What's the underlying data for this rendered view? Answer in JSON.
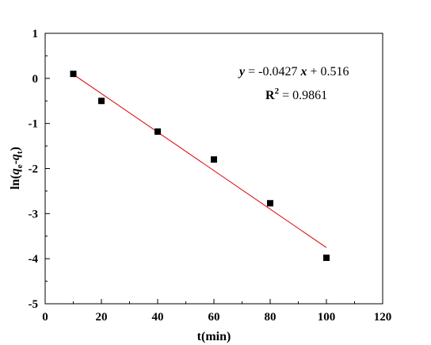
{
  "chart_data": {
    "type": "scatter",
    "xlabel": "t(min)",
    "ylabel": {
      "prefix": "ln(",
      "q1": "q",
      "sub1": "e",
      "dash": "-",
      "q2": "q",
      "sub2": "t",
      "suffix": ")"
    },
    "xlim": [
      0,
      120
    ],
    "ylim": [
      -5,
      1
    ],
    "xticks": [
      0,
      20,
      40,
      60,
      80,
      100,
      120
    ],
    "yticks": [
      1,
      0,
      -1,
      -2,
      -3,
      -4,
      -5
    ],
    "grid": false,
    "series": [
      {
        "x": [
          10,
          20,
          40,
          60,
          80,
          100
        ],
        "y": [
          0.1,
          -0.5,
          -1.18,
          -1.8,
          -2.77,
          -3.98
        ],
        "marker": "square",
        "color": "#000000"
      }
    ],
    "fit_line": {
      "slope": -0.0427,
      "intercept": 0.516,
      "x_range": [
        10,
        100
      ],
      "color": "#dd0000"
    },
    "annotations": {
      "equation": {
        "y": "y",
        "eq": " = -0.0427 ",
        "x": "x",
        "rest": " + 0.516"
      },
      "r2": {
        "R": "R",
        "sup": "2",
        "value": " = 0.9861"
      }
    }
  }
}
